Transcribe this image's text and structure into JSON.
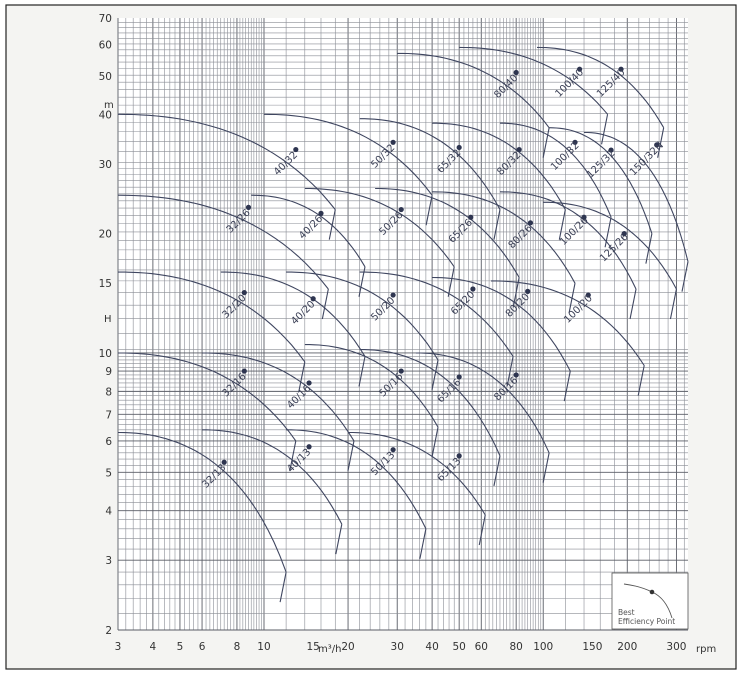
{
  "chart_data": {
    "type": "line",
    "title": "",
    "xlabel": "m³/h",
    "xlabel_extra": "rpm",
    "ylabel": "H",
    "ylabel_unit": "m",
    "xscale": "log",
    "yscale": "log",
    "xlim": [
      3,
      330
    ],
    "ylim": [
      2,
      70
    ],
    "x_ticks": [
      3,
      4,
      5,
      6,
      8,
      10,
      15,
      20,
      30,
      40,
      50,
      60,
      80,
      100,
      150,
      200,
      300
    ],
    "x_tick_labels": [
      "3",
      "4",
      "5",
      "6",
      "8",
      "10",
      "15",
      "20",
      "30",
      "40",
      "50",
      "60",
      "80",
      "100",
      "150",
      "200",
      "300"
    ],
    "y_ticks": [
      2,
      3,
      4,
      5,
      6,
      7,
      8,
      9,
      10,
      15,
      20,
      30,
      40,
      50,
      60,
      70
    ],
    "y_tick_labels": [
      "2",
      "3",
      "4",
      "5",
      "6",
      "7",
      "8",
      "9",
      "10",
      "15",
      "20",
      "30",
      "40",
      "50",
      "60",
      "70"
    ],
    "grid": true,
    "legend": {
      "placement": "bottom-right",
      "text": [
        "Best",
        "Efficiency Point"
      ]
    },
    "colors": {
      "curve": "#3f4660",
      "grid": "#8a8d95",
      "frame_bg": "#f4f4f2"
    },
    "series": [
      {
        "name": "32/13",
        "q0": 3,
        "h0": 6.3,
        "q1": 12,
        "h1": 2.8,
        "bep_q": 7.2,
        "bep_h": 5.3
      },
      {
        "name": "40/13",
        "q0": 6,
        "h0": 6.4,
        "q1": 19,
        "h1": 3.7,
        "bep_q": 14.5,
        "bep_h": 5.8
      },
      {
        "name": "50/13",
        "q0": 12,
        "h0": 6.4,
        "q1": 38,
        "h1": 3.6,
        "bep_q": 29,
        "bep_h": 5.7
      },
      {
        "name": "65/13",
        "q0": 20,
        "h0": 6.3,
        "q1": 62,
        "h1": 3.9,
        "bep_q": 50,
        "bep_h": 5.5
      },
      {
        "name": "32/16",
        "q0": 3,
        "h0": 10,
        "q1": 13,
        "h1": 6.0,
        "bep_q": 8.5,
        "bep_h": 9.0
      },
      {
        "name": "40/16",
        "q0": 6,
        "h0": 10,
        "q1": 21,
        "h1": 6.0,
        "bep_q": 14.5,
        "bep_h": 8.4
      },
      {
        "name": "50/16",
        "q0": 14,
        "h0": 10.5,
        "q1": 42,
        "h1": 6.5,
        "bep_q": 31,
        "bep_h": 9.0
      },
      {
        "name": "65/16",
        "q0": 22,
        "h0": 10.2,
        "q1": 70,
        "h1": 5.5,
        "bep_q": 50,
        "bep_h": 8.7
      },
      {
        "name": "80/16",
        "q0": 35,
        "h0": 10.0,
        "q1": 105,
        "h1": 5.6,
        "bep_q": 80,
        "bep_h": 8.8
      },
      {
        "name": "32/20",
        "q0": 3,
        "h0": 16,
        "q1": 14,
        "h1": 9.5,
        "bep_q": 8.5,
        "bep_h": 14.2
      },
      {
        "name": "40/20",
        "q0": 7,
        "h0": 16,
        "q1": 23,
        "h1": 9.8,
        "bep_q": 15,
        "bep_h": 13.7
      },
      {
        "name": "50/20",
        "q0": 12,
        "h0": 16,
        "q1": 42,
        "h1": 9.6,
        "bep_q": 29,
        "bep_h": 14
      },
      {
        "name": "65/20",
        "q0": 22,
        "h0": 16,
        "q1": 78,
        "h1": 9.8,
        "bep_q": 56,
        "bep_h": 14.5
      },
      {
        "name": "80/20",
        "q0": 40,
        "h0": 15.5,
        "q1": 125,
        "h1": 9.0,
        "bep_q": 88,
        "bep_h": 14.3
      },
      {
        "name": "100/20",
        "q0": 65,
        "h0": 15.2,
        "q1": 230,
        "h1": 9.3,
        "bep_q": 145,
        "bep_h": 14
      },
      {
        "name": "32/26",
        "q0": 3,
        "h0": 25,
        "q1": 17,
        "h1": 14.5,
        "bep_q": 8.8,
        "bep_h": 23.3
      },
      {
        "name": "40/26",
        "q0": 9,
        "h0": 25,
        "q1": 23,
        "h1": 16.5,
        "bep_q": 16,
        "bep_h": 22.5
      },
      {
        "name": "50/26",
        "q0": 14,
        "h0": 26,
        "q1": 48,
        "h1": 16.5,
        "bep_q": 31,
        "bep_h": 23
      },
      {
        "name": "65/26",
        "q0": 25,
        "h0": 26,
        "q1": 82,
        "h1": 15.5,
        "bep_q": 55,
        "bep_h": 22
      },
      {
        "name": "80/26",
        "q0": 40,
        "h0": 25.5,
        "q1": 130,
        "h1": 15.0,
        "bep_q": 90,
        "bep_h": 21.3
      },
      {
        "name": "100/26",
        "q0": 70,
        "h0": 25.5,
        "q1": 215,
        "h1": 14.5,
        "bep_q": 140,
        "bep_h": 22
      },
      {
        "name": "125/26",
        "q0": 100,
        "h0": 24,
        "q1": 300,
        "h1": 14.5,
        "bep_q": 195,
        "bep_h": 20
      },
      {
        "name": "40/32",
        "q0": 3,
        "h0": 40,
        "q1": 18,
        "h1": 23,
        "bep_q": 13,
        "bep_h": 32.6
      },
      {
        "name": "50/32",
        "q0": 10,
        "h0": 40,
        "q1": 40,
        "h1": 25,
        "bep_q": 29,
        "bep_h": 34
      },
      {
        "name": "65/32",
        "q0": 22,
        "h0": 39,
        "q1": 70,
        "h1": 23,
        "bep_q": 50,
        "bep_h": 33
      },
      {
        "name": "80/32",
        "q0": 40,
        "h0": 38,
        "q1": 120,
        "h1": 23,
        "bep_q": 82,
        "bep_h": 32.6
      },
      {
        "name": "100/32",
        "q0": 70,
        "h0": 38,
        "q1": 175,
        "h1": 22,
        "bep_q": 130,
        "bep_h": 34
      },
      {
        "name": "125/32",
        "q0": 105,
        "h0": 37,
        "q1": 245,
        "h1": 20,
        "bep_q": 175,
        "bep_h": 32.5
      },
      {
        "name": "150/32N",
        "q0": 140,
        "h0": 36,
        "q1": 330,
        "h1": 17,
        "bep_q": 255,
        "bep_h": 33.5
      },
      {
        "name": "80/40",
        "q0": 30,
        "h0": 57,
        "q1": 105,
        "h1": 37,
        "bep_q": 80,
        "bep_h": 51
      },
      {
        "name": "100/40",
        "q0": 50,
        "h0": 59,
        "q1": 170,
        "h1": 40,
        "bep_q": 135,
        "bep_h": 52
      },
      {
        "name": "125/40",
        "q0": 95,
        "h0": 59,
        "q1": 270,
        "h1": 37,
        "bep_q": 190,
        "bep_h": 52
      }
    ]
  }
}
